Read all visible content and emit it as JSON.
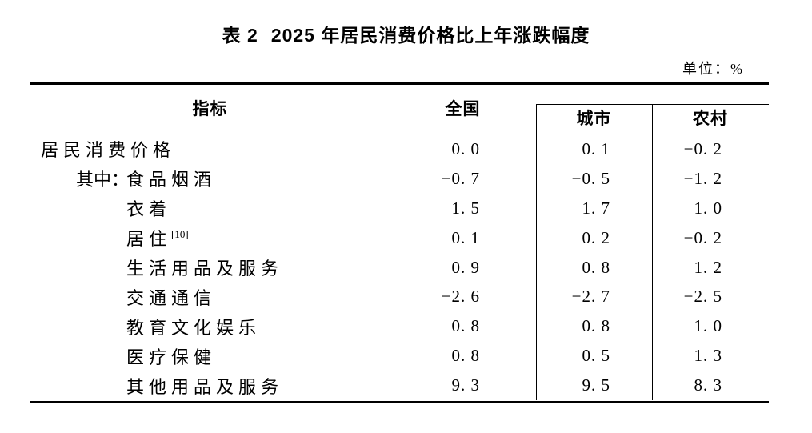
{
  "page": {
    "background_color": "#ffffff",
    "text_color": "#000000"
  },
  "title": {
    "label": "表 2",
    "text": "2025 年居民消费价格比上年涨跌幅度"
  },
  "unit_label": "单位：%",
  "table": {
    "columns": {
      "indicator": "指标",
      "national": "全国",
      "urban": "城市",
      "rural": "农村"
    },
    "rows": [
      {
        "indent": 0,
        "prefix": "",
        "label": "居民消费价格",
        "sup": "",
        "national": "0.0",
        "urban": "0.1",
        "rural": "-0.2"
      },
      {
        "indent": 1,
        "prefix": "其中：",
        "label": "食品烟酒",
        "sup": "",
        "national": "-0.7",
        "urban": "-0.5",
        "rural": "-1.2"
      },
      {
        "indent": 2,
        "prefix": "",
        "label": "衣着",
        "sup": "",
        "national": "1.5",
        "urban": "1.7",
        "rural": "1.0"
      },
      {
        "indent": 2,
        "prefix": "",
        "label": "居住",
        "sup": "[10]",
        "national": "0.1",
        "urban": "0.2",
        "rural": "-0.2"
      },
      {
        "indent": 2,
        "prefix": "",
        "label": "生活用品及服务",
        "sup": "",
        "national": "0.9",
        "urban": "0.8",
        "rural": "1.2"
      },
      {
        "indent": 2,
        "prefix": "",
        "label": "交通通信",
        "sup": "",
        "national": "-2.6",
        "urban": "-2.7",
        "rural": "-2.5"
      },
      {
        "indent": 2,
        "prefix": "",
        "label": "教育文化娱乐",
        "sup": "",
        "national": "0.8",
        "urban": "0.8",
        "rural": "1.0"
      },
      {
        "indent": 2,
        "prefix": "",
        "label": "医疗保健",
        "sup": "",
        "national": "0.8",
        "urban": "0.5",
        "rural": "1.3"
      },
      {
        "indent": 2,
        "prefix": "",
        "label": "其他用品及服务",
        "sup": "",
        "national": "9.3",
        "urban": "9.5",
        "rural": "8.3"
      }
    ]
  },
  "chart_data": {
    "type": "table",
    "title": "表 2 2025 年居民消费价格比上年涨跌幅度",
    "unit": "%",
    "columns": [
      "指标",
      "全国",
      "城市",
      "农村"
    ],
    "rows": [
      [
        "居民消费价格",
        0.0,
        0.1,
        -0.2
      ],
      [
        "其中：食品烟酒",
        -0.7,
        -0.5,
        -1.2
      ],
      [
        "衣着",
        1.5,
        1.7,
        1.0
      ],
      [
        "居住[10]",
        0.1,
        0.2,
        -0.2
      ],
      [
        "生活用品及服务",
        0.9,
        0.8,
        1.2
      ],
      [
        "交通通信",
        -2.6,
        -2.7,
        -2.5
      ],
      [
        "教育文化娱乐",
        0.8,
        0.8,
        1.0
      ],
      [
        "医疗保健",
        0.8,
        0.5,
        1.3
      ],
      [
        "其他用品及服务",
        9.3,
        9.5,
        8.3
      ]
    ]
  }
}
